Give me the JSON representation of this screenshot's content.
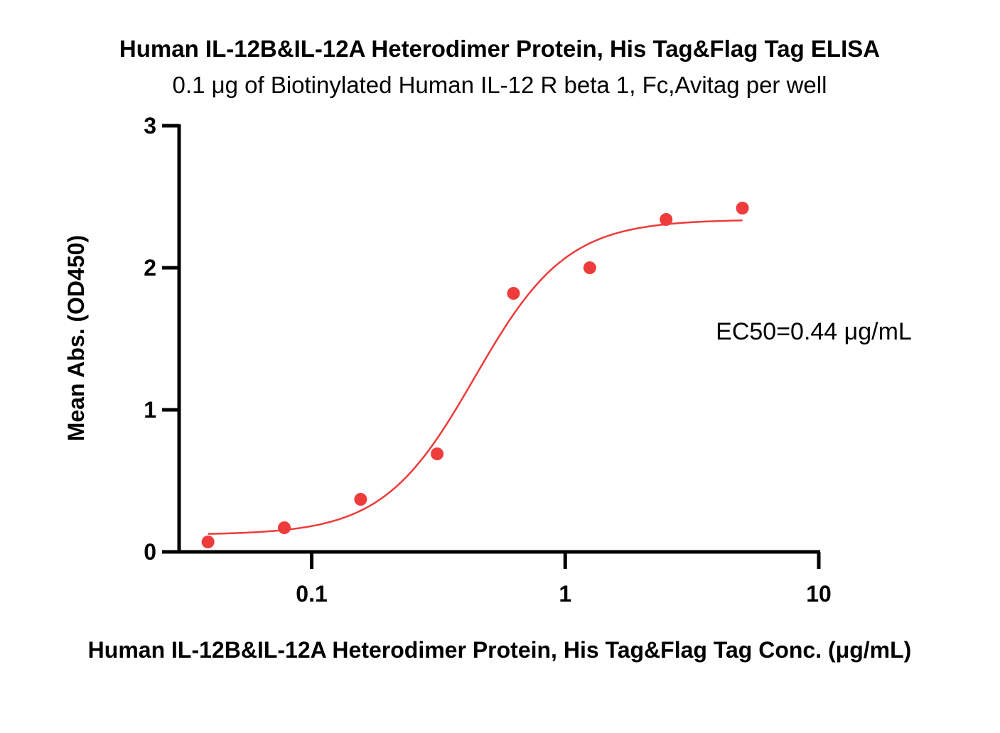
{
  "chart_data": {
    "type": "scatter",
    "title": "Human IL-12B&IL-12A Heterodimer Protein, His Tag&Flag Tag ELISA",
    "subtitle": "0.1 μg of Biotinylated Human IL-12 R beta 1, Fc,Avitag per well",
    "xlabel": "Human IL-12B&IL-12A Heterodimer Protein, His Tag&Flag Tag Conc. (μg/mL)",
    "ylabel": "Mean Abs. (OD450)",
    "x_scale": "log",
    "xlim": [
      0.03,
      10
    ],
    "ylim": [
      0,
      3
    ],
    "x_ticks": [
      0.1,
      1,
      10
    ],
    "x_tick_labels": [
      "0.1",
      "1",
      "10"
    ],
    "y_ticks": [
      0,
      1,
      2,
      3
    ],
    "y_tick_labels": [
      "0",
      "1",
      "2",
      "3"
    ],
    "grid": false,
    "series": [
      {
        "x": [
          0.039,
          0.078,
          0.156,
          0.3125,
          0.625,
          1.25,
          2.5,
          5
        ],
        "y": [
          0.07,
          0.17,
          0.37,
          0.69,
          1.82,
          2.0,
          2.34,
          2.42
        ],
        "color": "#ee3b3b"
      }
    ],
    "fit": {
      "model": "4PL",
      "bottom": 0.12,
      "top": 2.34,
      "ec50": 0.44,
      "hill": 2.4,
      "x_range": [
        0.039,
        5
      ],
      "color": "#ee3b3b"
    },
    "annotation": "EC50=0.44 μg/mL"
  }
}
